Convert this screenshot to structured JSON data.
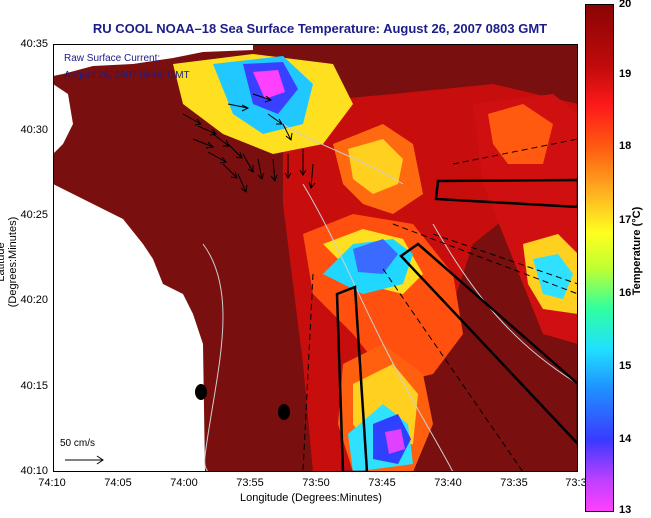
{
  "title": "RU COOL  NOAA–18  Sea Surface Temperature:  August 26, 2007 0803 GMT",
  "overlay": {
    "line1": "Raw Surface Current:",
    "line2": "August 26, 2007 08:00 GMT"
  },
  "y_axis": {
    "label": "Latitude (Degrees:Minutes)",
    "ticks": [
      "40:35",
      "40:30",
      "40:25",
      "40:20",
      "40:15",
      "40:10"
    ]
  },
  "x_axis": {
    "label": "Longitude (Degrees:Minutes)",
    "ticks": [
      "74:10",
      "74:05",
      "74:00",
      "73:55",
      "73:50",
      "73:45",
      "73:40",
      "73:35",
      "73:3"
    ]
  },
  "colorbar": {
    "label": "Temperature (°C)",
    "ticks": [
      "20",
      "19",
      "18",
      "17",
      "16",
      "15",
      "14",
      "13"
    ]
  },
  "scale": {
    "label": "50 cm/s"
  },
  "colors": {
    "land": "#ffffff",
    "warm": "#7a0f0f",
    "title": "#1c1c8a"
  }
}
